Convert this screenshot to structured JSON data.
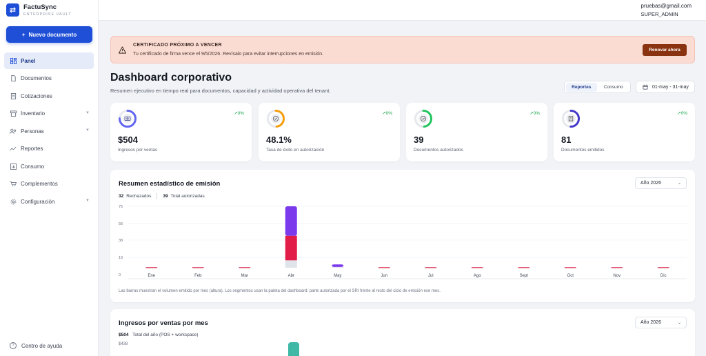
{
  "brand": {
    "name": "FactuSync",
    "subtitle": "ENTERPRISE VAULT",
    "logo_icon": "swap-arrows-icon"
  },
  "sidebar": {
    "new_doc_label": "Nuevo documento",
    "items": [
      {
        "label": "Panel",
        "icon": "dashboard-icon",
        "active": true,
        "has_children": false
      },
      {
        "label": "Documentos",
        "icon": "document-icon",
        "active": false,
        "has_children": false
      },
      {
        "label": "Cotizaciones",
        "icon": "quote-icon",
        "active": false,
        "has_children": false
      },
      {
        "label": "Inventario",
        "icon": "box-icon",
        "active": false,
        "has_children": true
      },
      {
        "label": "Personas",
        "icon": "people-icon",
        "active": false,
        "has_children": true
      },
      {
        "label": "Reportes",
        "icon": "trend-icon",
        "active": false,
        "has_children": false
      },
      {
        "label": "Consumo",
        "icon": "bar-chart-icon",
        "active": false,
        "has_children": false
      },
      {
        "label": "Complementos",
        "icon": "cart-icon",
        "active": false,
        "has_children": false
      },
      {
        "label": "Configuración",
        "icon": "gear-icon",
        "active": false,
        "has_children": true
      }
    ],
    "help_label": "Centro de ayuda"
  },
  "topbar": {
    "email": "pruebas@gmail.com",
    "role": "SUPER_ADMIN"
  },
  "alert": {
    "title": "CERTIFICADO PRÓXIMO A VENCER",
    "text": "Tu certificado de firma vence el 9/5/2026. Revísalo para evitar interrupciones en emisión.",
    "button": "Renovar ahora",
    "bg": "#fbdcd3",
    "button_color": "#8a3310"
  },
  "header": {
    "title": "Dashboard corporativo",
    "subtitle": "Resumen ejecutivo en tiempo real para documentos, capacidad y actividad operativa del tenant.",
    "tabs": [
      {
        "label": "Reportes",
        "active": true
      },
      {
        "label": "Consumo",
        "active": false
      }
    ],
    "date_range": "01-may - 31-may"
  },
  "kpis": [
    {
      "value": "$504",
      "label": "Ingresos por ventas",
      "trend": "0%",
      "ring_color": "#6366f1",
      "ring_fill": 0.75,
      "icon": "cash-icon"
    },
    {
      "value": "48.1%",
      "label": "Tasa de éxito en autorización",
      "trend": "0%",
      "ring_color": "#f59e0b",
      "ring_fill": 0.48,
      "icon": "check-circle-icon"
    },
    {
      "value": "39",
      "label": "Documentos autorizados",
      "trend": "0%",
      "ring_color": "#22c55e",
      "ring_fill": 0.48,
      "icon": "check-circle-icon"
    },
    {
      "value": "81",
      "label": "Documentos emitidos",
      "trend": "0%",
      "ring_color": "#4338ca",
      "ring_fill": 0.5,
      "icon": "receipt-icon"
    }
  ],
  "emission_chart": {
    "title": "Resumen estadístico de emisión",
    "year_label": "Año 2026",
    "rejected_count": "32",
    "rejected_label": "Rechazados",
    "authorized_count": "39",
    "authorized_label": "Total autorizadas",
    "note": "Las barras muestran el volumen emitido por mes (altura). Los segmentos usan la paleta del dashboard: parte autorizada por el SRI frente al resto del ciclo de emisión ese mes."
  },
  "chart_data": {
    "type": "bar",
    "stacked": true,
    "categories": [
      "Ene",
      "Feb",
      "Mar",
      "Abr",
      "May",
      "Jun",
      "Jul",
      "Ago",
      "Sept",
      "Oct",
      "Nov",
      "Dic"
    ],
    "y_ticks": [
      0,
      19,
      38,
      56,
      75
    ],
    "ylim": [
      0,
      75
    ],
    "series": [
      {
        "segment": "base",
        "color": "#dfe3ea",
        "values": [
          0,
          0,
          0,
          9,
          1,
          0,
          0,
          0,
          0,
          0,
          0,
          0
        ]
      },
      {
        "segment": "middle",
        "color": "#e11d48",
        "values": [
          0,
          0,
          0,
          30,
          0,
          0,
          0,
          0,
          0,
          0,
          0,
          0
        ]
      },
      {
        "segment": "top",
        "color": "#7c3aed",
        "values": [
          0,
          0,
          0,
          36,
          3,
          0,
          0,
          0,
          0,
          0,
          0,
          0
        ]
      }
    ],
    "grid": true
  },
  "income_chart": {
    "title": "Ingresos por ventas por mes",
    "year_label": "Año 2026",
    "total_value": "$504",
    "total_label": "Total del año (POS + workspace)",
    "top_tick": "$438",
    "bar_color": "#3fb8a5"
  }
}
